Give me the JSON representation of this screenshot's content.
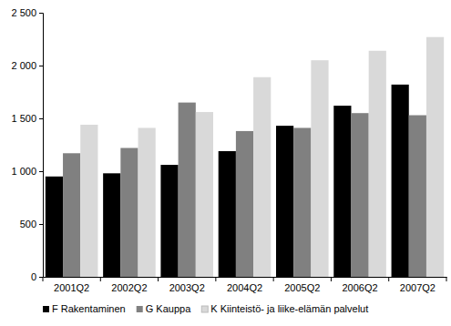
{
  "chart_data": {
    "type": "bar",
    "categories": [
      "2001Q2",
      "2002Q2",
      "2003Q2",
      "2004Q2",
      "2005Q2",
      "2006Q2",
      "2007Q2"
    ],
    "series": [
      {
        "name": "F Rakentaminen",
        "color": "#000000",
        "values": [
          950,
          980,
          1060,
          1190,
          1430,
          1620,
          1820
        ]
      },
      {
        "name": "G Kauppa",
        "color": "#808080",
        "values": [
          1170,
          1220,
          1650,
          1380,
          1410,
          1550,
          1530
        ]
      },
      {
        "name": "K Kiinteistö- ja liike-elämän palvelut",
        "color": "#d9d9d9",
        "values": [
          1440,
          1410,
          1560,
          1890,
          2050,
          2140,
          2270
        ]
      }
    ],
    "ylim": [
      0,
      2500
    ],
    "yticks": [
      0,
      500,
      {
        "value": 1000,
        "label": "1 000"
      },
      {
        "value": 1500,
        "label": "1 500"
      },
      {
        "value": 2000,
        "label": "2 000"
      },
      {
        "value": 2500,
        "label": "2 500"
      }
    ],
    "grid": false,
    "legend": "bottom"
  }
}
